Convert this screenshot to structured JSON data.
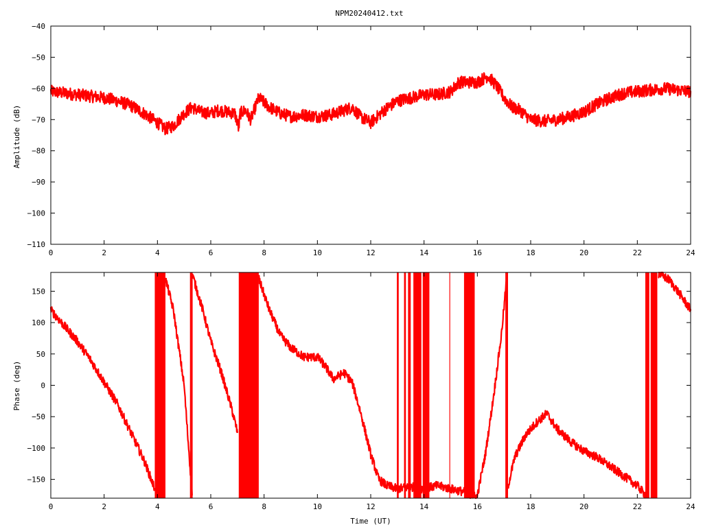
{
  "title": "NPM20240412.txt",
  "colors": {
    "series": "#ff0000",
    "axis": "#000000",
    "background": "#ffffff"
  },
  "chart_data": [
    {
      "type": "line",
      "name": "amplitude-panel",
      "title": "NPM20240412.txt",
      "xlabel": "",
      "ylabel": "Amplitude (dB)",
      "xlim": [
        0,
        24
      ],
      "ylim": [
        -110,
        -40
      ],
      "xticks": [
        0,
        2,
        4,
        6,
        8,
        10,
        12,
        14,
        16,
        18,
        20,
        22,
        24
      ],
      "yticks": [
        -110,
        -100,
        -90,
        -80,
        -70,
        -60,
        -50,
        -40
      ],
      "xtick_labels": [
        "0",
        "2",
        "4",
        "6",
        "8",
        "10",
        "12",
        "14",
        "16",
        "18",
        "20",
        "22",
        "24"
      ],
      "ytick_labels": [
        "−110",
        "−100",
        "−90",
        "−80",
        "−70",
        "−60",
        "−50",
        "−40"
      ],
      "grid": false,
      "noise_band": 2.0,
      "series": [
        {
          "x": [
            0,
            0.5,
            1,
            1.5,
            2,
            2.5,
            3,
            3.5,
            4,
            4.3,
            4.6,
            5,
            5.3,
            5.6,
            6,
            6.3,
            6.6,
            6.9,
            7.0,
            7.05,
            7.1,
            7.3,
            7.5,
            7.8,
            8.2,
            8.6,
            9,
            9.5,
            10,
            10.5,
            11,
            11.3,
            11.6,
            12,
            12.5,
            13,
            13.5,
            14,
            14.5,
            15,
            15.3,
            15.6,
            16,
            16.4,
            16.7,
            17,
            17.3,
            17.6,
            18,
            18.5,
            19,
            19.5,
            20,
            20.5,
            21,
            21.5,
            22,
            22.5,
            23,
            23.5,
            24
          ],
          "y": [
            -61,
            -61.5,
            -62,
            -62.5,
            -63,
            -64,
            -65.5,
            -68,
            -71,
            -73,
            -72,
            -68,
            -66,
            -67.5,
            -68,
            -67,
            -67.5,
            -68,
            -71,
            -73,
            -68,
            -67,
            -70,
            -63,
            -66,
            -68,
            -69,
            -68.5,
            -69,
            -68.5,
            -67,
            -66,
            -69,
            -71,
            -67,
            -64,
            -63,
            -62,
            -62,
            -61,
            -58,
            -58,
            -58,
            -56,
            -59,
            -63,
            -66,
            -67,
            -70,
            -70.5,
            -70,
            -69,
            -67.5,
            -65,
            -63,
            -61.5,
            -61,
            -60.5,
            -60,
            -60.5,
            -61
          ]
        }
      ]
    },
    {
      "type": "line",
      "name": "phase-panel",
      "xlabel": "Time (UT)",
      "ylabel": "Phase (deg)",
      "xlim": [
        0,
        24
      ],
      "ylim": [
        -180,
        180
      ],
      "xticks": [
        0,
        2,
        4,
        6,
        8,
        10,
        12,
        14,
        16,
        18,
        20,
        22,
        24
      ],
      "yticks": [
        -150,
        -100,
        -50,
        0,
        50,
        100,
        150
      ],
      "xtick_labels": [
        "0",
        "2",
        "4",
        "6",
        "8",
        "10",
        "12",
        "14",
        "16",
        "18",
        "20",
        "22",
        "24"
      ],
      "ytick_labels": [
        "−150",
        "−100",
        "−50",
        "0",
        "50",
        "100",
        "150"
      ],
      "grid": false,
      "noise_band": 7.0,
      "series": [
        {
          "x": [
            0,
            0.5,
            1,
            1.5,
            2,
            2.5,
            3,
            3.5,
            3.9
          ],
          "y": [
            120,
            95,
            70,
            40,
            5,
            -30,
            -75,
            -120,
            -165
          ]
        },
        {
          "x": [
            4.3,
            4.6,
            5.0,
            5.3
          ],
          "y": [
            170,
            120,
            0,
            -175
          ]
        },
        {
          "x": [
            5.3,
            5.7,
            6.0,
            6.4,
            6.8,
            7.0
          ],
          "y": [
            178,
            120,
            70,
            20,
            -40,
            -75
          ]
        },
        {
          "x": [
            7.8,
            8.2,
            8.6,
            9.0,
            9.5,
            10.0,
            10.3,
            10.6,
            11.0,
            11.3,
            11.6,
            12.0,
            12.3,
            12.6,
            13.0
          ],
          "y": [
            170,
            120,
            80,
            60,
            45,
            45,
            30,
            10,
            20,
            5,
            -40,
            -110,
            -150,
            -160,
            -165
          ]
        },
        {
          "x": [
            13.0,
            13.5,
            14.0,
            14.5,
            15.0,
            15.5,
            15.8,
            16.0
          ],
          "y": [
            -165,
            -162,
            -165,
            -160,
            -165,
            -170,
            -175,
            -178
          ]
        },
        {
          "x": [
            16.0,
            16.3,
            16.6,
            16.9,
            17.1
          ],
          "y": [
            -175,
            -110,
            -20,
            80,
            170
          ]
        },
        {
          "x": [
            17.1,
            17.4,
            17.8,
            18.2,
            18.6,
            19.0,
            19.5,
            20.0,
            20.5,
            21.0,
            21.5,
            22.0,
            22.3
          ],
          "y": [
            -170,
            -115,
            -80,
            -60,
            -45,
            -70,
            -90,
            -105,
            -115,
            -130,
            -145,
            -160,
            -175
          ]
        },
        {
          "x": [
            22.8,
            23.2,
            23.6,
            24.0
          ],
          "y": [
            178,
            168,
            145,
            120
          ]
        }
      ],
      "wrap_bands": [
        {
          "x0": 3.9,
          "x1": 4.3
        },
        {
          "x0": 5.22,
          "x1": 5.32
        },
        {
          "x0": 7.05,
          "x1": 7.8
        },
        {
          "x0": 12.98,
          "x1": 13.05
        },
        {
          "x0": 13.25,
          "x1": 13.32
        },
        {
          "x0": 13.4,
          "x1": 13.5
        },
        {
          "x0": 13.6,
          "x1": 13.9
        },
        {
          "x0": 13.95,
          "x1": 14.2
        },
        {
          "x0": 14.95,
          "x1": 14.98
        },
        {
          "x0": 15.5,
          "x1": 15.9
        },
        {
          "x0": 17.05,
          "x1": 17.15
        },
        {
          "x0": 22.3,
          "x1": 22.45
        },
        {
          "x0": 22.5,
          "x1": 22.75
        }
      ]
    }
  ]
}
